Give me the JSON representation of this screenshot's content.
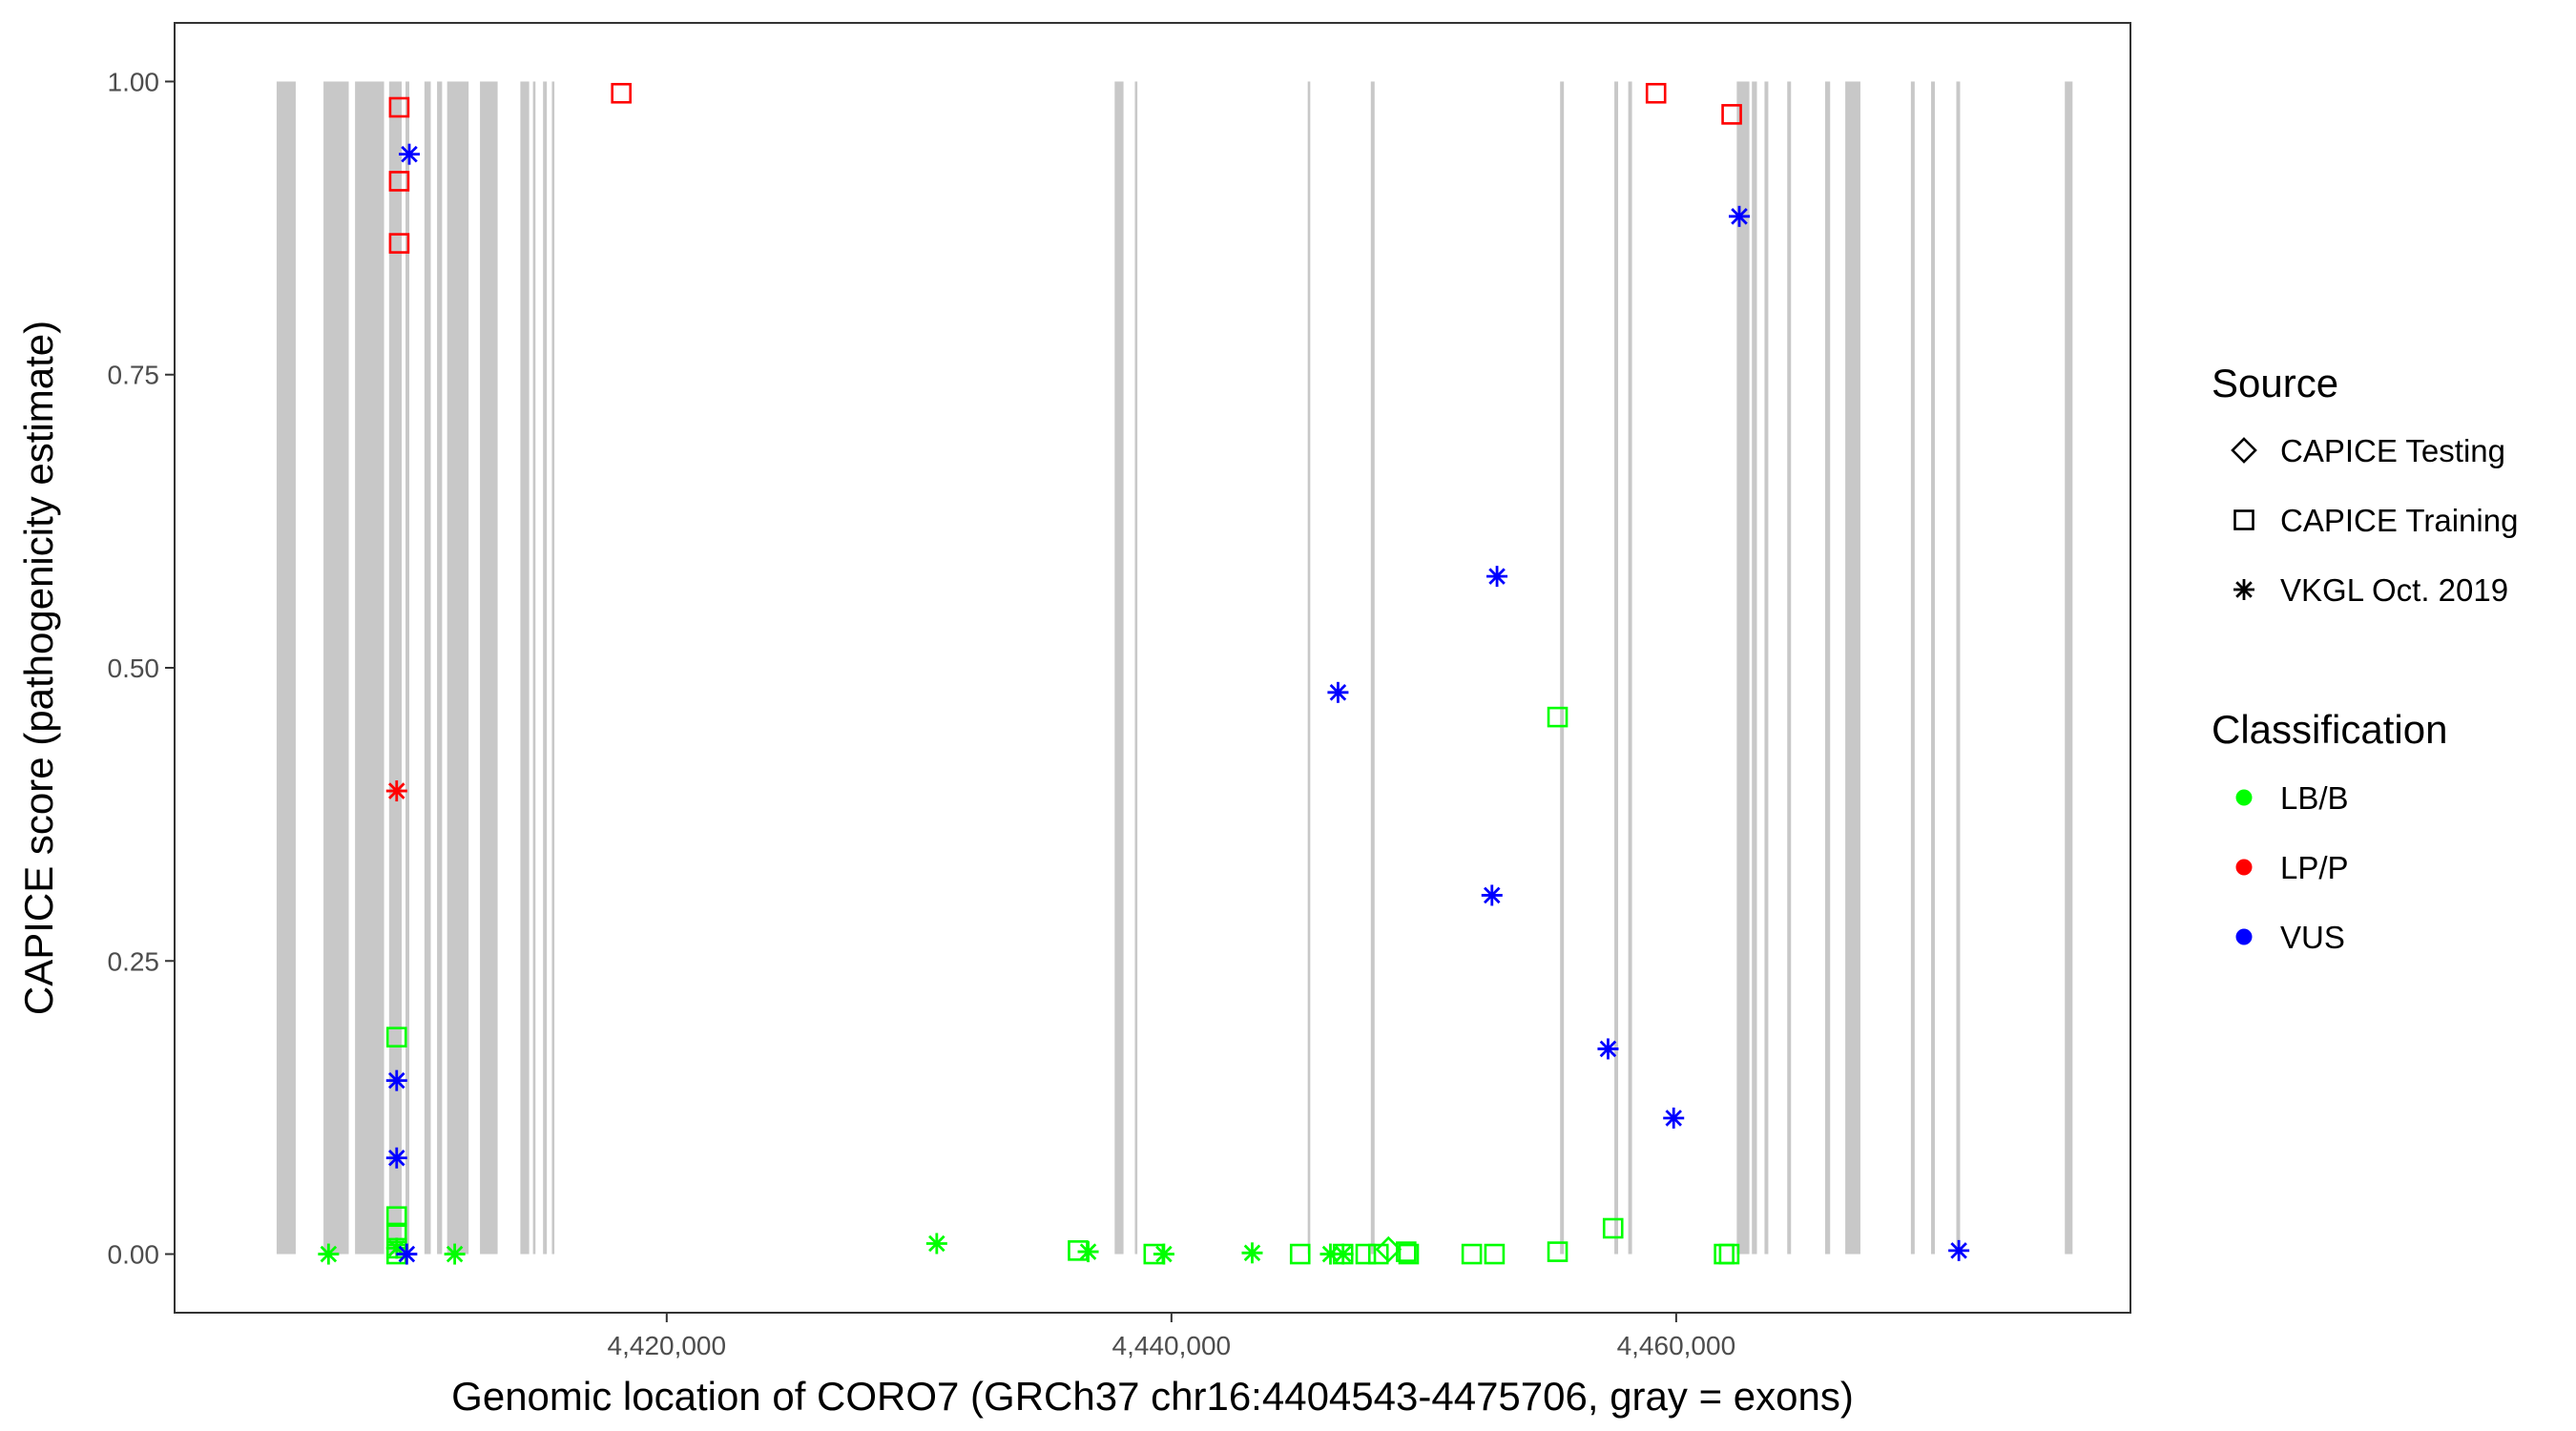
{
  "chart_data": {
    "type": "scatter",
    "xlabel": "Genomic location of CORO7 (GRCh37 chr16:4404543-4475706, gray = exons)",
    "ylabel": "CAPICE score (pathogenicity estimate)",
    "xlim": [
      4400500,
      4478000
    ],
    "ylim": [
      -0.05,
      1.05
    ],
    "x_ticks": [
      {
        "value": 4420000,
        "label": "4,420,000"
      },
      {
        "value": 4440000,
        "label": "4,440,000"
      },
      {
        "value": 4460000,
        "label": "4,460,000"
      }
    ],
    "y_ticks": [
      {
        "value": 0.0,
        "label": "0.00"
      },
      {
        "value": 0.25,
        "label": "0.25"
      },
      {
        "value": 0.5,
        "label": "0.50"
      },
      {
        "value": 0.75,
        "label": "0.75"
      },
      {
        "value": 1.0,
        "label": "1.00"
      }
    ],
    "grid": false,
    "legend_position": "right",
    "exon_color": "#c8c8c8",
    "exons": [
      [
        4404543,
        4405300
      ],
      [
        4406400,
        4407400
      ],
      [
        4407650,
        4408800
      ],
      [
        4409000,
        4409500
      ],
      [
        4409650,
        4409800
      ],
      [
        4410400,
        4410650
      ],
      [
        4410900,
        4411100
      ],
      [
        4411300,
        4412150
      ],
      [
        4412600,
        4413300
      ],
      [
        4414200,
        4414550
      ],
      [
        4414700,
        4414800
      ],
      [
        4415100,
        4415250
      ],
      [
        4415450,
        4415550
      ],
      [
        4437750,
        4438100
      ],
      [
        4438550,
        4438650
      ],
      [
        4445400,
        4445500
      ],
      [
        4447900,
        4448050
      ],
      [
        4455400,
        4455550
      ],
      [
        4457550,
        4457700
      ],
      [
        4458100,
        4458250
      ],
      [
        4462400,
        4462900
      ],
      [
        4463000,
        4463200
      ],
      [
        4463500,
        4463650
      ],
      [
        4464400,
        4464550
      ],
      [
        4465900,
        4466100
      ],
      [
        4466700,
        4467300
      ],
      [
        4469300,
        4469450
      ],
      [
        4470100,
        4470250
      ],
      [
        4471100,
        4471250
      ],
      [
        4475400,
        4475706
      ]
    ],
    "colors": {
      "LB/B": "#00ff00",
      "LP/P": "#ff0000",
      "VUS": "#0000ff"
    },
    "series": [
      {
        "name": "CAPICE Testing",
        "classification": "LB/B",
        "points": [
          [
            4448600,
            0.004
          ]
        ]
      },
      {
        "name": "CAPICE Training",
        "classification": "LB/B",
        "points": [
          [
            4409300,
            0.185
          ],
          [
            4409300,
            0.032
          ],
          [
            4409300,
            0.018
          ],
          [
            4409300,
            0.005
          ],
          [
            4409300,
            0.0
          ],
          [
            4436300,
            0.003
          ],
          [
            4439300,
            0.0
          ],
          [
            4445100,
            0.0
          ],
          [
            4446800,
            0.0
          ],
          [
            4447700,
            0.0
          ],
          [
            4448200,
            0.0
          ],
          [
            4449300,
            0.002
          ],
          [
            4449400,
            0.0
          ],
          [
            4451900,
            0.0
          ],
          [
            4452800,
            0.0
          ],
          [
            4455300,
            0.458
          ],
          [
            4455300,
            0.002
          ],
          [
            4457500,
            0.022
          ],
          [
            4461900,
            0.0
          ],
          [
            4462100,
            0.0
          ]
        ]
      },
      {
        "name": "CAPICE Training",
        "classification": "LP/P",
        "points": [
          [
            4409400,
            0.978
          ],
          [
            4409400,
            0.915
          ],
          [
            4409400,
            0.862
          ],
          [
            4418200,
            0.99
          ],
          [
            4459200,
            0.99
          ],
          [
            4462200,
            0.972
          ]
        ]
      },
      {
        "name": "VKGL Oct. 2019",
        "classification": "LB/B",
        "points": [
          [
            4406600,
            0.0
          ],
          [
            4409300,
            0.005
          ],
          [
            4411600,
            0.0
          ],
          [
            4430700,
            0.009
          ],
          [
            4436700,
            0.002
          ],
          [
            4439700,
            0.0
          ],
          [
            4443200,
            0.001
          ],
          [
            4446300,
            0.0
          ],
          [
            4446800,
            0.0
          ]
        ]
      },
      {
        "name": "VKGL Oct. 2019",
        "classification": "LP/P",
        "points": [
          [
            4409300,
            0.395
          ]
        ]
      },
      {
        "name": "VKGL Oct. 2019",
        "classification": "VUS",
        "points": [
          [
            4409300,
            0.148
          ],
          [
            4409300,
            0.082
          ],
          [
            4409700,
            0.0
          ],
          [
            4409800,
            0.938
          ],
          [
            4446600,
            0.479
          ],
          [
            4452700,
            0.306
          ],
          [
            4452900,
            0.578
          ],
          [
            4457300,
            0.175
          ],
          [
            4459900,
            0.116
          ],
          [
            4462500,
            0.885
          ],
          [
            4471200,
            0.003
          ]
        ]
      }
    ]
  },
  "legend": {
    "source_title": "Source",
    "source_items": [
      {
        "label": "CAPICE Testing",
        "shape": "diamond"
      },
      {
        "label": "CAPICE Training",
        "shape": "square"
      },
      {
        "label": "VKGL Oct. 2019",
        "shape": "asterisk"
      }
    ],
    "class_title": "Classification",
    "class_items": [
      {
        "label": "LB/B",
        "color": "#00ff00"
      },
      {
        "label": "LP/P",
        "color": "#ff0000"
      },
      {
        "label": "VUS",
        "color": "#0000ff"
      }
    ]
  }
}
